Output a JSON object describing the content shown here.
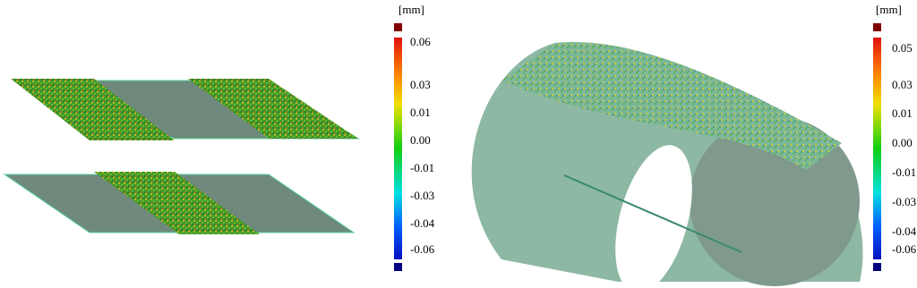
{
  "colorbars": [
    {
      "unit": "[mm]",
      "ticks": [
        "0.06",
        "0.03",
        "0.01",
        "0.00",
        "-0.01",
        "-0.03",
        "-0.04",
        "-0.06"
      ]
    },
    {
      "unit": "[mm]",
      "ticks": [
        "0.05",
        "0.03",
        "0.01",
        "0.00",
        "-0.01",
        "-0.03",
        "-0.04",
        "-0.06"
      ]
    }
  ]
}
